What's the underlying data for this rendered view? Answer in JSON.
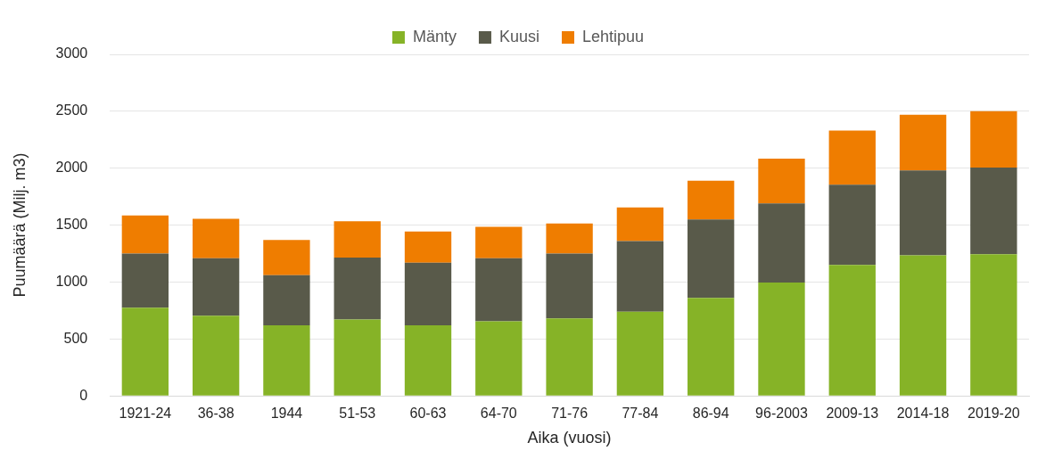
{
  "chart_data": {
    "type": "bar",
    "stacked": true,
    "xlabel": "Aika (vuosi)",
    "ylabel": "Puumäärä (Milj. m3)",
    "categories": [
      "1921-24",
      "36-38",
      "1944",
      "51-53",
      "60-63",
      "64-70",
      "71-76",
      "77-84",
      "86-94",
      "96-2003",
      "2009-13",
      "2014-18",
      "2019-20"
    ],
    "series": [
      {
        "name": "Mänty",
        "color": "#86b327",
        "values": [
          775,
          705,
          620,
          670,
          620,
          655,
          680,
          740,
          860,
          995,
          1150,
          1235,
          1245
        ]
      },
      {
        "name": "Kuusi",
        "color": "#595a4a",
        "values": [
          475,
          505,
          440,
          545,
          550,
          555,
          570,
          620,
          690,
          695,
          705,
          745,
          760
        ]
      },
      {
        "name": "Lehtipuu",
        "color": "#ef7d00",
        "values": [
          335,
          345,
          310,
          320,
          275,
          275,
          265,
          295,
          340,
          395,
          475,
          490,
          495
        ]
      }
    ],
    "ylim": [
      0,
      3000
    ],
    "yticks": [
      0,
      500,
      1000,
      1500,
      2000,
      2500,
      3000
    ],
    "grid": "y",
    "legend": "top"
  }
}
